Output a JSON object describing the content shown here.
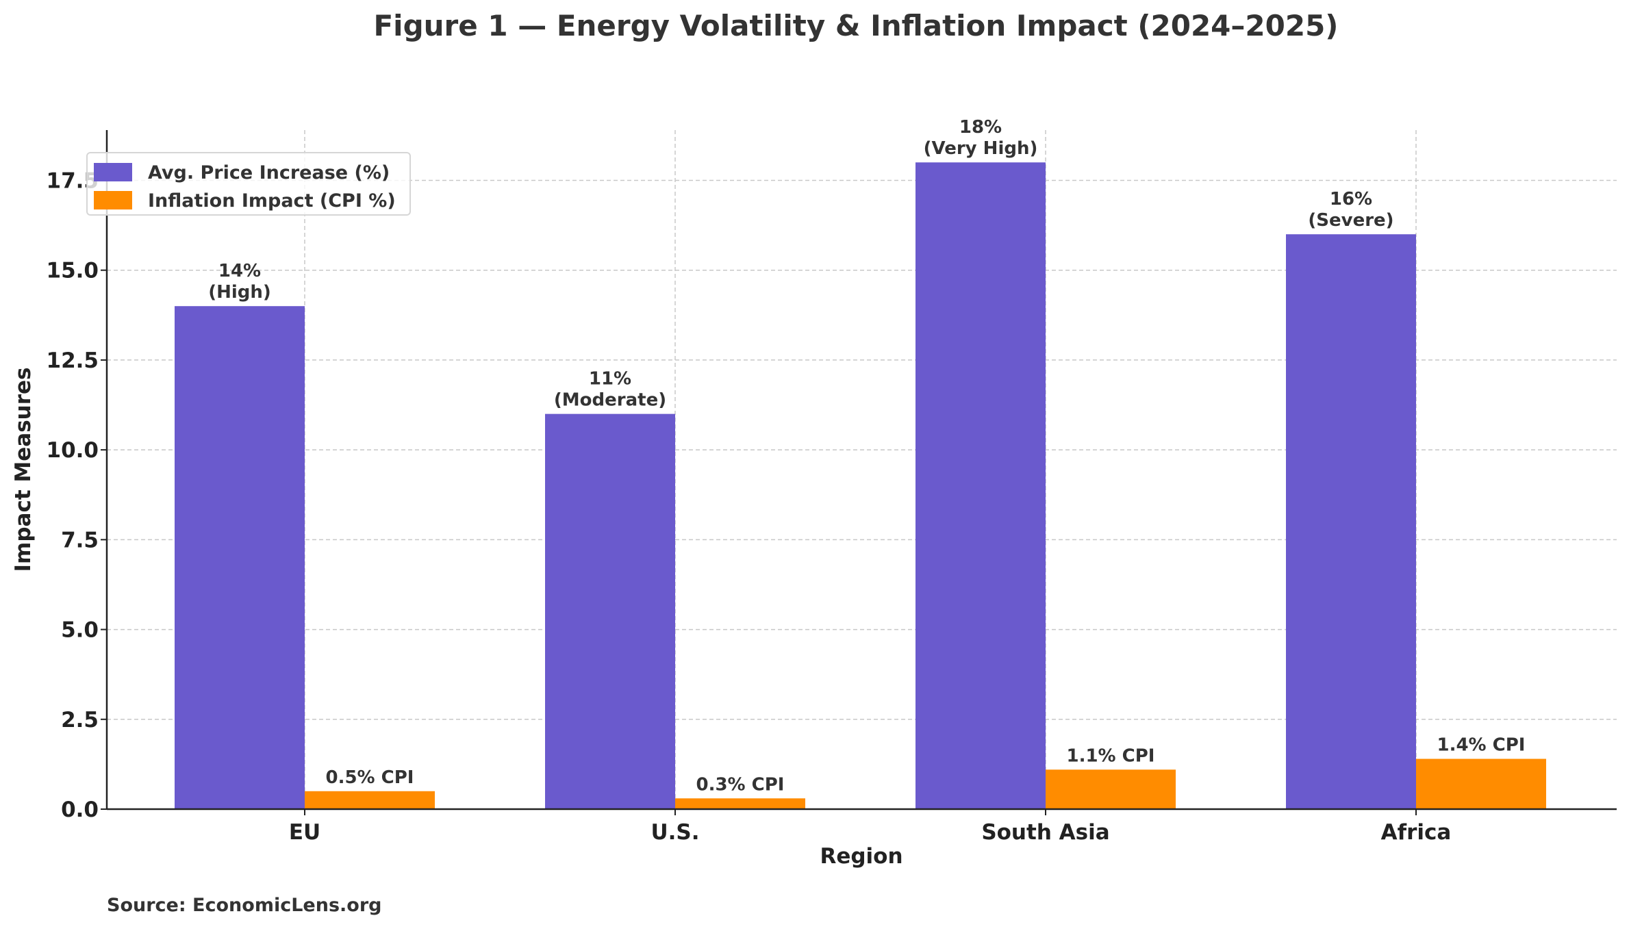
{
  "chart_data": {
    "type": "bar",
    "title": "Figure 1 — Energy Volatility & Inflation Impact (2024–2025)",
    "xlabel": "Region",
    "ylabel": "Impact Measures",
    "categories": [
      "EU",
      "U.S.",
      "South Asia",
      "Africa"
    ],
    "series": [
      {
        "name": "Avg. Price Increase (%)",
        "color": "#6a5acd",
        "values": [
          14,
          11,
          18,
          16
        ],
        "labels": [
          "14%\n(High)",
          "11%\n(Moderate)",
          "18%\n(Very High)",
          "16%\n(Severe)"
        ]
      },
      {
        "name": "Inflation Impact (CPI %)",
        "color": "#ff8c00",
        "values": [
          0.5,
          0.3,
          1.1,
          1.4
        ],
        "labels": [
          "0.5% CPI",
          "0.3% CPI",
          "1.1% CPI",
          "1.4% CPI"
        ]
      }
    ],
    "ylim": [
      0,
      18.9
    ],
    "yticks": [
      0,
      2.5,
      5,
      7.5,
      10,
      12.5,
      15,
      17.5
    ],
    "ytick_labels": [
      "0.0",
      "2.5",
      "5.0",
      "7.5",
      "10.0",
      "12.5",
      "15.0",
      "17.5"
    ],
    "grid": true,
    "legend_position": "top-left",
    "source": "Source: EconomicLens.org"
  }
}
